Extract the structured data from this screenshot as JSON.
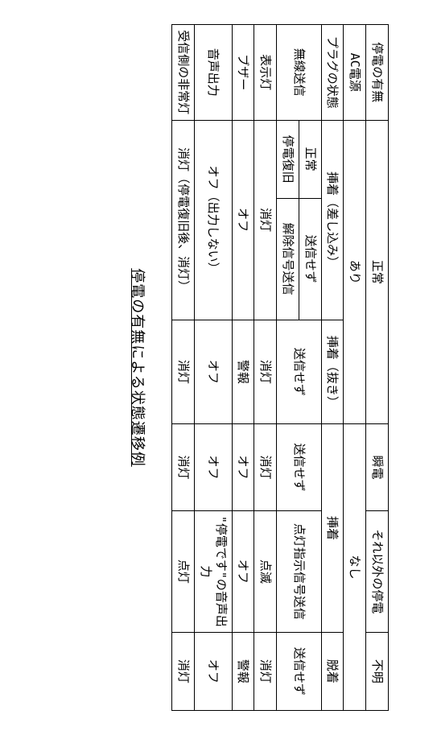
{
  "table": {
    "row_labels": {
      "r1": "停電の有無",
      "r2": "AC電源",
      "r3": "プラグの状態",
      "r4": "無線送信",
      "r5": "表示灯",
      "r6": "ブザー",
      "r7": "音声出力",
      "r8": "受信側の非常灯"
    },
    "r1": {
      "normal": "正常",
      "momentary": "瞬電",
      "other_outage": "それ以外の停電",
      "unknown": "不明"
    },
    "r2": {
      "yes": "あり",
      "no": "なし"
    },
    "r3": {
      "insert": "挿着（差し込み）",
      "remove": "挿着（抜き）",
      "insert2": "挿着",
      "detach": "脱着"
    },
    "r4": {
      "normal": "正常",
      "no_send": "送信せず",
      "no_send_b": "送信せず",
      "no_send_c": "送信せず",
      "light_sig": "点灯指示信号送信",
      "no_send_d": "送信せず",
      "restore": "停電復旧",
      "release_sig": "解除信号送信"
    },
    "r5": {
      "off_a": "消灯",
      "off_b": "消灯",
      "off_c": "消灯",
      "blink": "点滅",
      "off_d": "消灯"
    },
    "r6": {
      "off_a": "オフ",
      "alarm_b": "警報",
      "off_c": "オフ",
      "off_d": "オフ",
      "alarm_e": "警報"
    },
    "r7": {
      "none": "オフ（出力しない）",
      "off_b": "オフ",
      "off_c": "オフ",
      "voice": "\"停電です\"の音声出力",
      "off_e": "オフ"
    },
    "r8": {
      "off_restore": "消灯（停電復旧後、消灯）",
      "off_b": "消灯",
      "off_c": "消灯",
      "on": "点灯",
      "off_e": "消灯"
    }
  },
  "caption": "停電の有無による状態遷移例"
}
